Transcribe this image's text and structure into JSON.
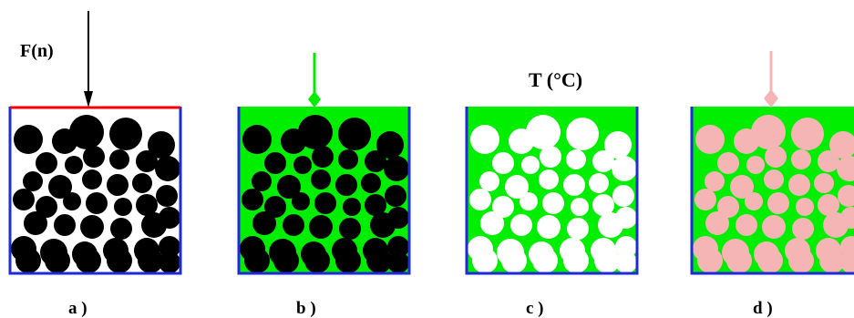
{
  "labels": {
    "force": "F(n)",
    "temperature": "T (°C)",
    "panel_a": "a )",
    "panel_b": "b )",
    "panel_c": "c )",
    "panel_d": "d )"
  },
  "colors": {
    "wall": "#1f2bd6",
    "lid": "#ff0000",
    "green_fill": "#00ee00",
    "pink": "#f5b5b5",
    "black": "#000000",
    "white": "#ffffff"
  },
  "panels": [
    {
      "id": "a",
      "fill": "none",
      "particle": "black",
      "lid": true,
      "indicator": "arrow"
    },
    {
      "id": "b",
      "fill": "green",
      "particle": "black",
      "lid": false,
      "indicator": "green-diamond"
    },
    {
      "id": "c",
      "fill": "green",
      "particle": "white",
      "lid": false,
      "indicator": "none"
    },
    {
      "id": "d",
      "fill": "green",
      "particle": "pink",
      "lid": false,
      "indicator": "pink-diamond"
    }
  ]
}
